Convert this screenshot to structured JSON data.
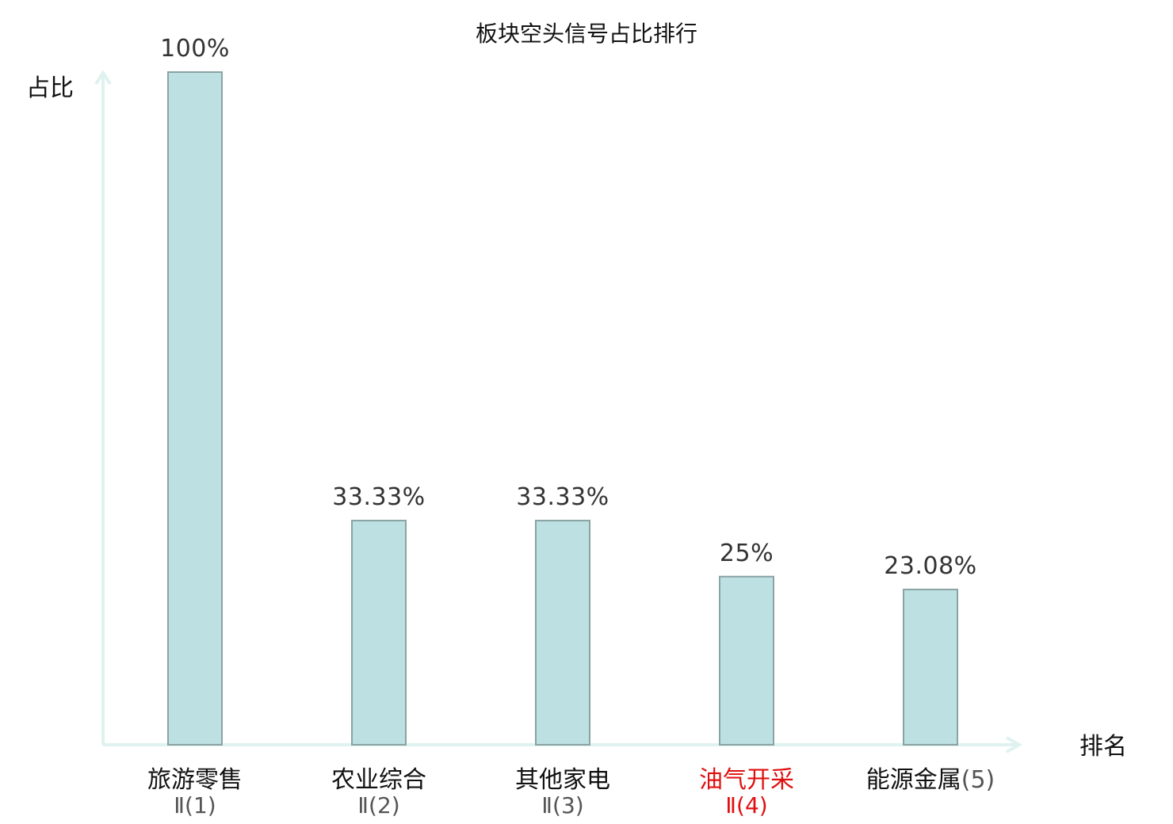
{
  "chart_data": {
    "type": "bar",
    "title": "板块空头信号占比排行",
    "xlabel": "排名",
    "ylabel": "占比",
    "ylim": [
      0,
      100
    ],
    "categories": [
      {
        "name": "旅游零售",
        "rank": "Ⅱ(1)",
        "highlight": false
      },
      {
        "name": "农业综合",
        "rank": "Ⅱ(2)",
        "highlight": false
      },
      {
        "name": "其他家电",
        "rank": "Ⅱ(3)",
        "highlight": false
      },
      {
        "name": "油气开采",
        "rank": "Ⅱ(4)",
        "highlight": true
      },
      {
        "name": "能源金属",
        "rank": "(5)",
        "highlight": false
      }
    ],
    "values": [
      100,
      33.33,
      33.33,
      25,
      23.08
    ],
    "value_labels": [
      "100%",
      "33.33%",
      "33.33%",
      "25%",
      "23.08%"
    ],
    "grid": false,
    "colors": {
      "bar_fill": "#bde0e2",
      "bar_stroke": "#8aa3a3",
      "axis": "#dff2ef",
      "text": "#111111",
      "value_text": "#333333",
      "rank_text": "#555555",
      "highlight": "#e01010"
    }
  }
}
